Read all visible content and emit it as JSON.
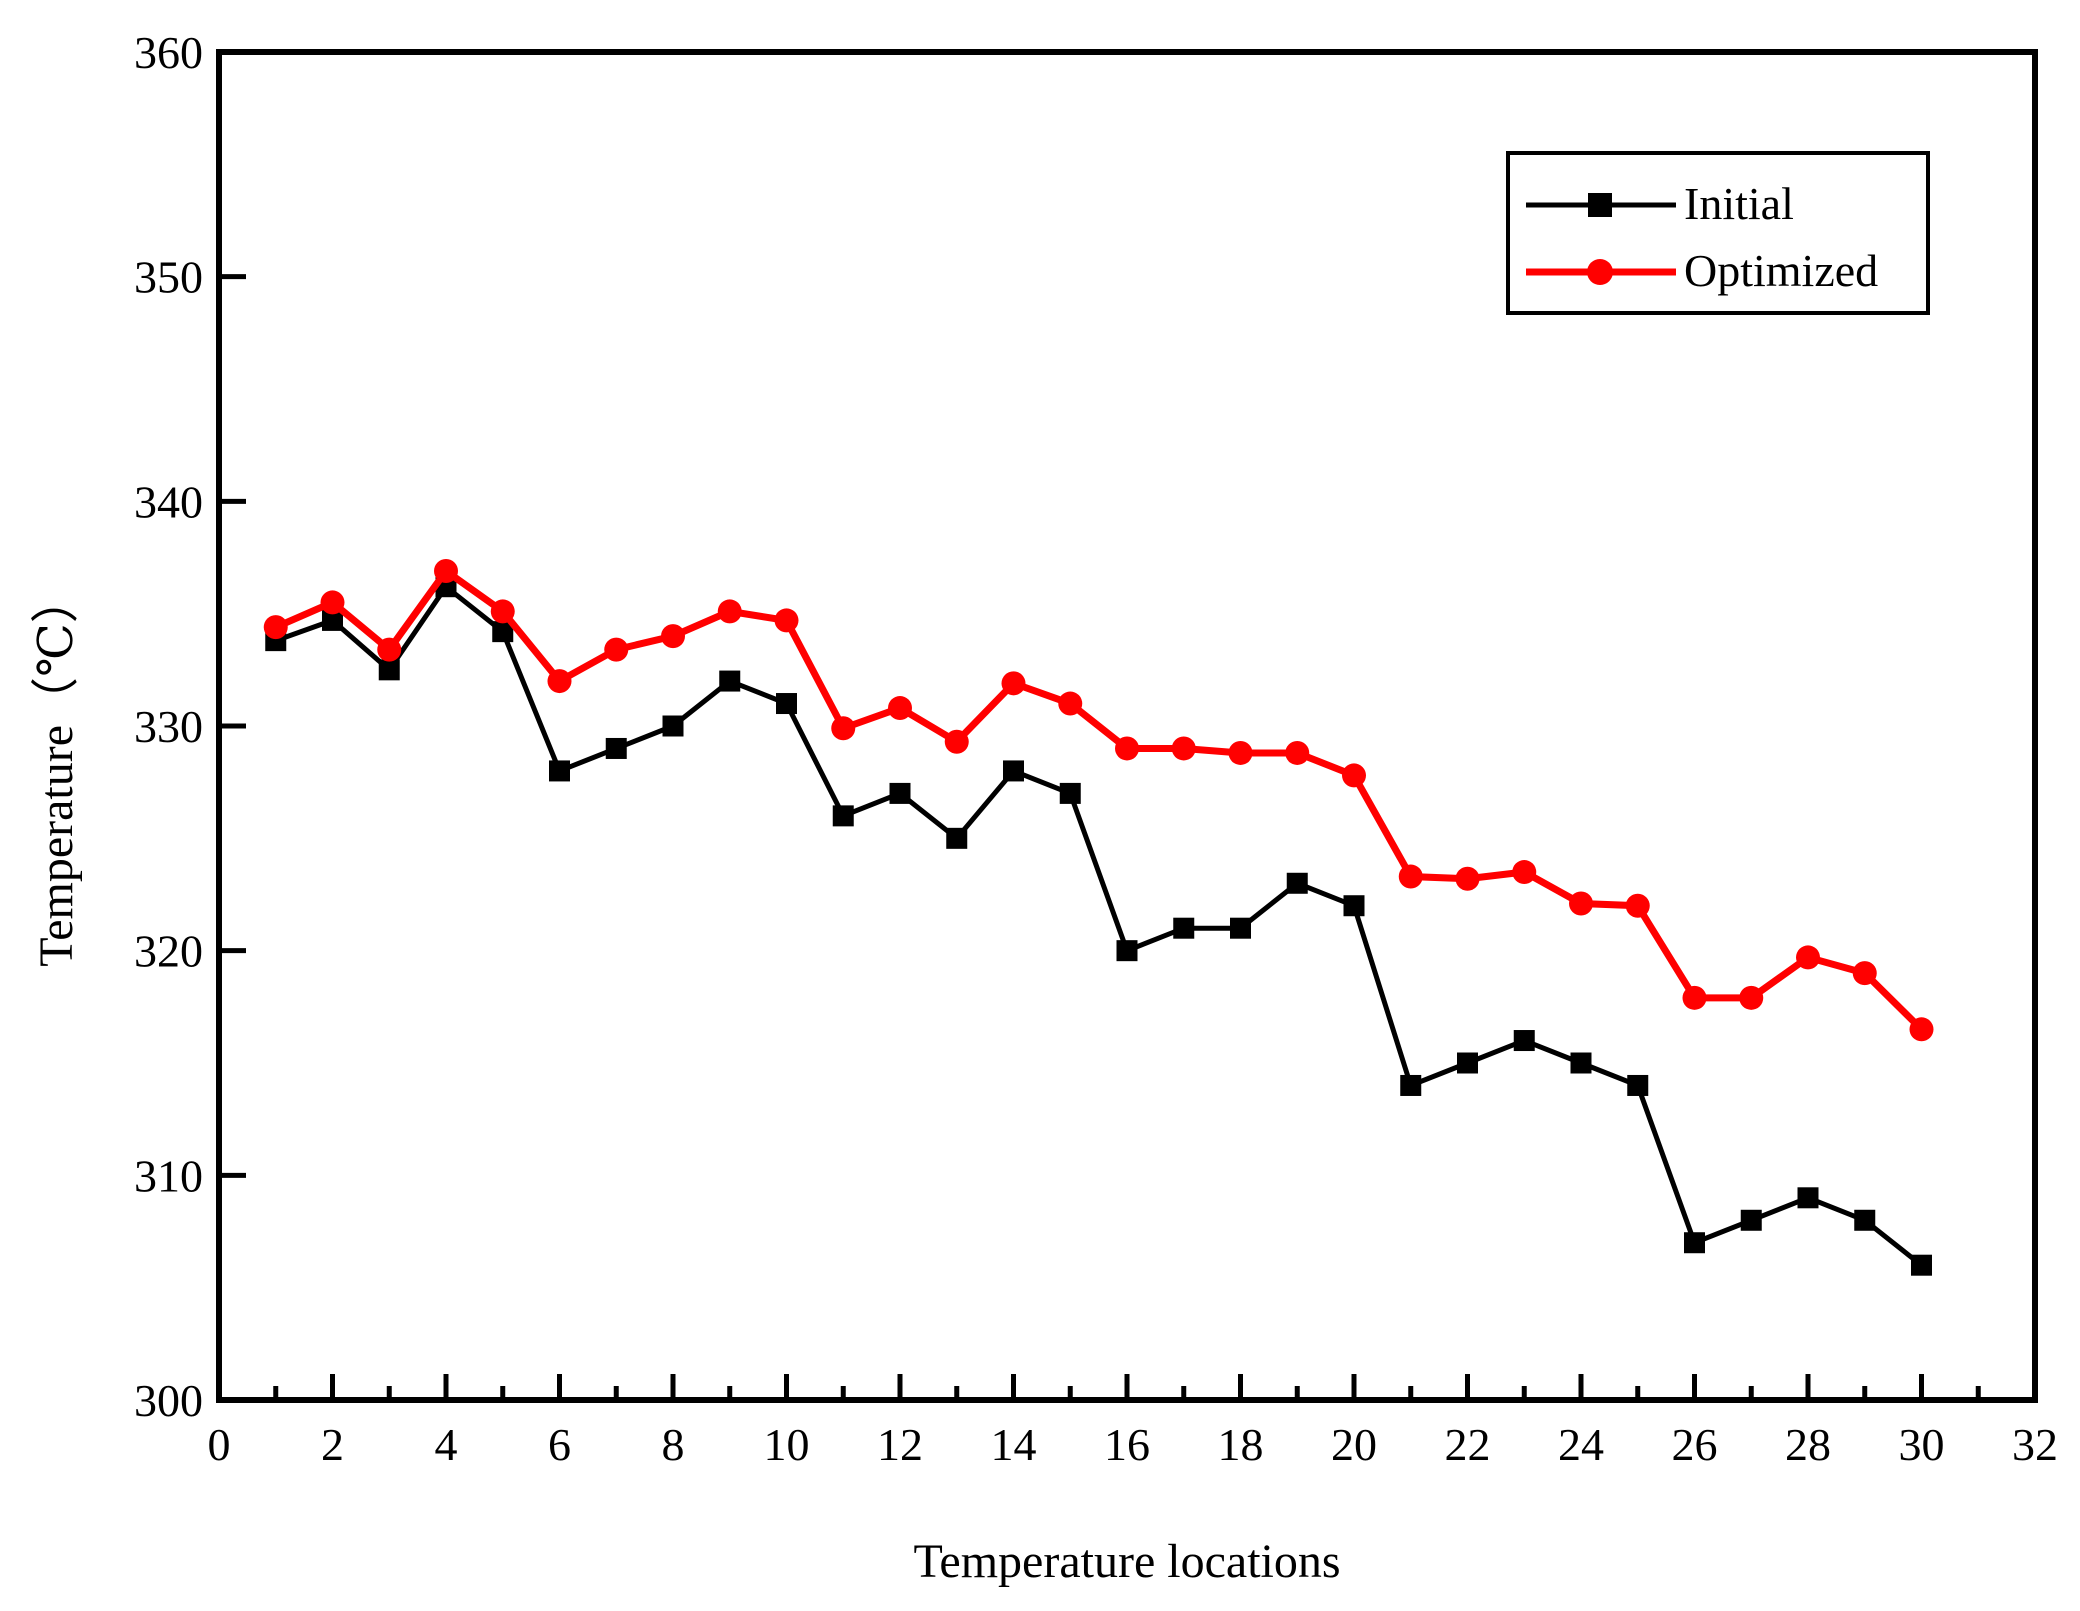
{
  "figure": {
    "background": "#ffffff",
    "frame_color": "#000000"
  },
  "chart_data": {
    "type": "line",
    "title": "",
    "xlabel": "Temperature locations",
    "ylabel": "Temperature（℃）",
    "xlim": [
      0,
      32
    ],
    "ylim": [
      300,
      360
    ],
    "grid": false,
    "legend_position": "top-right",
    "x_tick_labels": [
      "0",
      "2",
      "4",
      "6",
      "8",
      "10",
      "12",
      "14",
      "16",
      "18",
      "20",
      "22",
      "24",
      "26",
      "28",
      "30",
      "32"
    ],
    "y_tick_labels": [
      "300",
      "310",
      "320",
      "330",
      "340",
      "350",
      "360"
    ],
    "x": [
      1,
      2,
      3,
      4,
      5,
      6,
      7,
      8,
      9,
      10,
      11,
      12,
      13,
      14,
      15,
      16,
      17,
      18,
      19,
      20,
      21,
      22,
      23,
      24,
      25,
      26,
      27,
      28,
      29,
      30
    ],
    "series": [
      {
        "name": "Initial",
        "color": "#000000",
        "marker": "square",
        "values": [
          333.8,
          334.7,
          332.5,
          336.2,
          334.2,
          328.0,
          329.0,
          330.0,
          332.0,
          331.0,
          326.0,
          327.0,
          325.0,
          328.0,
          327.0,
          320.0,
          321.0,
          321.0,
          323.0,
          322.0,
          314.0,
          315.0,
          316.0,
          315.0,
          314.0,
          307.0,
          308.0,
          309.0,
          308.0,
          306.0
        ]
      },
      {
        "name": "Optimized",
        "color": "#ff0000",
        "marker": "circle",
        "values": [
          334.4,
          335.5,
          333.4,
          336.9,
          335.1,
          332.0,
          333.4,
          334.0,
          335.1,
          334.7,
          329.9,
          330.8,
          329.3,
          331.9,
          331.0,
          329.0,
          329.0,
          328.8,
          328.8,
          327.8,
          323.3,
          323.2,
          323.5,
          322.1,
          322.0,
          317.9,
          317.9,
          319.7,
          319.0,
          316.5
        ]
      }
    ]
  }
}
